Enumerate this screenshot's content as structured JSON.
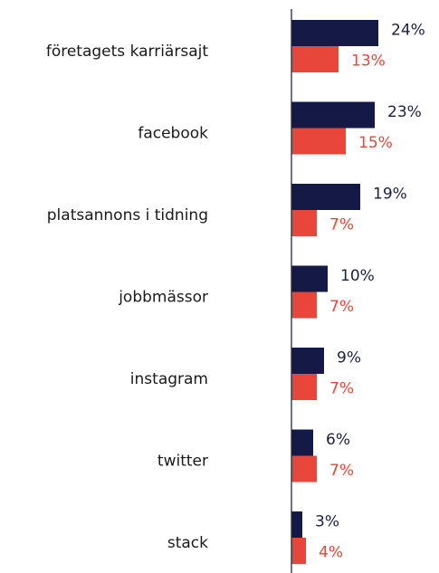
{
  "chart_data": {
    "type": "bar",
    "orientation": "horizontal",
    "categories": [
      "företagets karriärsajt",
      "facebook",
      "platsannons i tidning",
      "jobbmässor",
      "instagram",
      "twitter",
      "stack"
    ],
    "series": [
      {
        "values": [
          24,
          23,
          19,
          10,
          9,
          6,
          3
        ],
        "color": "#141a45"
      },
      {
        "values": [
          13,
          15,
          7,
          7,
          7,
          7,
          4
        ],
        "color": "#e8463a"
      }
    ],
    "value_suffix": "%",
    "xlim": [
      0,
      24
    ],
    "grid": false,
    "legend": false
  }
}
